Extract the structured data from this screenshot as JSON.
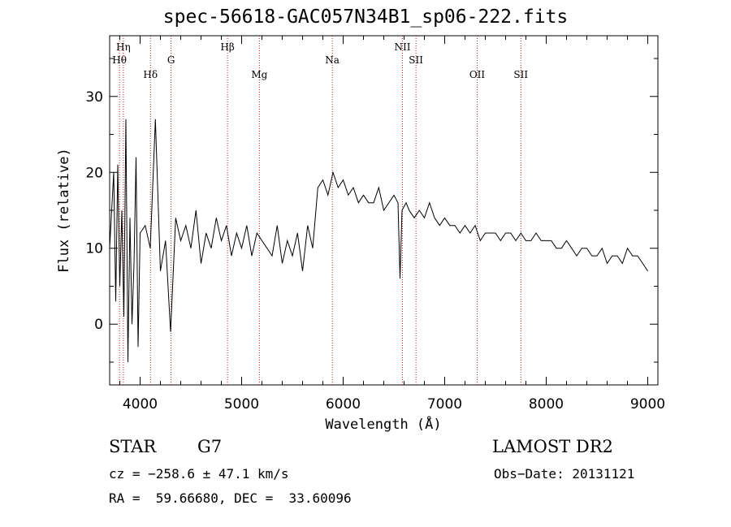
{
  "chart_data": {
    "type": "line",
    "title": "spec-56618-GAC057N34B1_sp06-222.fits",
    "xlabel": "Wavelength (Å)",
    "ylabel": "Flux (relative)",
    "xlim": [
      3700,
      9100
    ],
    "ylim": [
      -8,
      38
    ],
    "xticks": [
      4000,
      5000,
      6000,
      7000,
      8000,
      9000
    ],
    "yticks": [
      0,
      10,
      20,
      30
    ],
    "grid": false,
    "series": [
      {
        "x": [
          3700,
          3740,
          3760,
          3780,
          3800,
          3820,
          3840,
          3860,
          3880,
          3900,
          3920,
          3940,
          3960,
          3980,
          4000,
          4050,
          4100,
          4150,
          4200,
          4250,
          4300,
          4350,
          4400,
          4450,
          4500,
          4550,
          4600,
          4650,
          4700,
          4750,
          4800,
          4850,
          4900,
          4950,
          5000,
          5050,
          5100,
          5150,
          5200,
          5250,
          5300,
          5350,
          5400,
          5450,
          5500,
          5550,
          5600,
          5650,
          5700,
          5750,
          5800,
          5850,
          5900,
          5950,
          6000,
          6050,
          6100,
          6150,
          6200,
          6250,
          6300,
          6350,
          6400,
          6450,
          6500,
          6540,
          6560,
          6580,
          6620,
          6650,
          6700,
          6750,
          6800,
          6850,
          6900,
          6950,
          7000,
          7050,
          7100,
          7150,
          7200,
          7250,
          7300,
          7350,
          7400,
          7450,
          7500,
          7550,
          7600,
          7650,
          7700,
          7750,
          7800,
          7850,
          7900,
          7950,
          8000,
          8050,
          8100,
          8150,
          8200,
          8250,
          8300,
          8350,
          8400,
          8450,
          8500,
          8550,
          8600,
          8650,
          8700,
          8750,
          8800,
          8850,
          8900,
          8950,
          9000
        ],
        "y": [
          10,
          20,
          3,
          21,
          5,
          15,
          1,
          27,
          -5,
          14,
          0,
          8,
          22,
          -3,
          12,
          13,
          10,
          27,
          7,
          11,
          -1,
          14,
          11,
          13,
          10,
          15,
          8,
          12,
          10,
          14,
          11,
          13,
          9,
          12,
          10,
          13,
          9,
          12,
          11,
          10,
          9,
          13,
          8,
          11,
          9,
          12,
          7,
          13,
          10,
          18,
          19,
          17,
          20,
          18,
          19,
          17,
          18,
          16,
          17,
          16,
          16,
          18,
          15,
          16,
          17,
          16,
          6,
          15,
          16,
          15,
          14,
          15,
          14,
          16,
          14,
          13,
          14,
          13,
          13,
          12,
          13,
          12,
          13,
          11,
          12,
          12,
          12,
          11,
          12,
          12,
          11,
          12,
          11,
          11,
          12,
          11,
          11,
          11,
          10,
          10,
          11,
          10,
          9,
          10,
          10,
          9,
          9,
          10,
          8,
          9,
          9,
          8,
          10,
          9,
          9,
          8,
          7
        ]
      }
    ],
    "lines": [
      {
        "label": "Hη",
        "x": 3835,
        "row": 0
      },
      {
        "label": "Hθ",
        "x": 3797,
        "row": 1
      },
      {
        "label": "Hδ",
        "x": 4102,
        "row": 2
      },
      {
        "label": "G",
        "x": 4305,
        "row": 1
      },
      {
        "label": "Hβ",
        "x": 4861,
        "row": 0
      },
      {
        "label": "Mg",
        "x": 5175,
        "row": 2
      },
      {
        "label": "Na",
        "x": 5893,
        "row": 1
      },
      {
        "label": "NII",
        "x": 6584,
        "row": 0
      },
      {
        "label": "SII",
        "x": 6717,
        "row": 1
      },
      {
        "label": "OII",
        "x": 7320,
        "row": 2
      },
      {
        "label": "SII",
        "x": 7750,
        "row": 2
      }
    ]
  },
  "info": {
    "class": "STAR",
    "subclass": "G7",
    "survey": "LAMOST DR2",
    "cz": "cz = −258.6 ± 47.1 km/s",
    "obs_date": "Obs−Date: 20131121",
    "radec": "RA =  59.66680, DEC =  33.60096"
  }
}
